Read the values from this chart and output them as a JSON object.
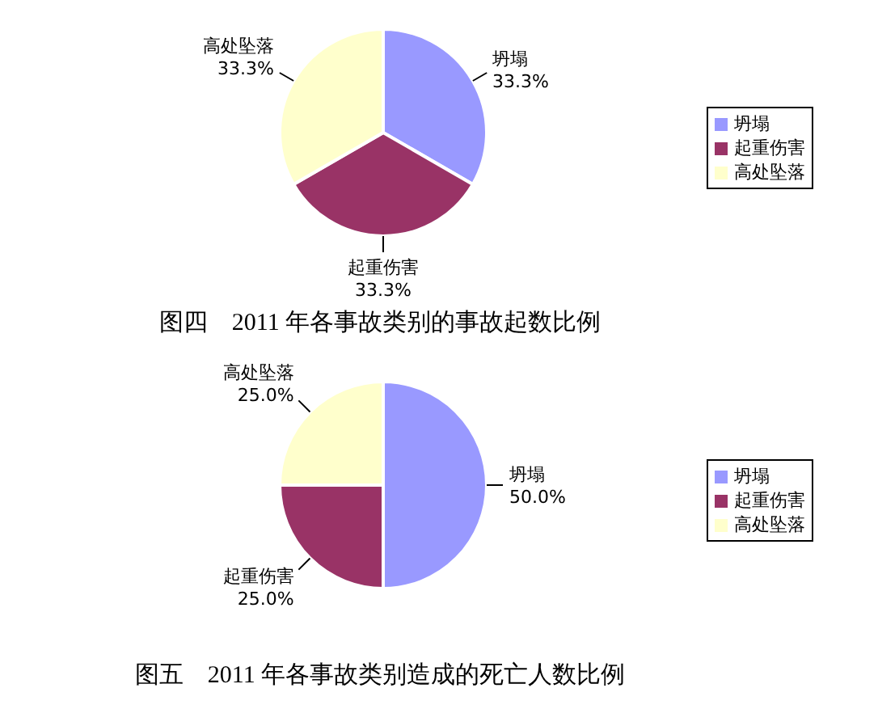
{
  "chart_data": [
    {
      "type": "pie",
      "title": "图四　2011 年各事故类别的事故起数比例",
      "categories": [
        "坍塌",
        "起重伤害",
        "高处坠落"
      ],
      "values": [
        33.3,
        33.3,
        33.3
      ],
      "colors": [
        "#9999ff",
        "#993366",
        "#ffffcc"
      ],
      "value_labels": [
        "33.3%",
        "33.3%",
        "33.3%"
      ],
      "legend": "right"
    },
    {
      "type": "pie",
      "title": "图五　2011 年各事故类别造成的死亡人数比例",
      "categories": [
        "坍塌",
        "起重伤害",
        "高处坠落"
      ],
      "values": [
        50,
        25,
        25
      ],
      "colors": [
        "#9999ff",
        "#993366",
        "#ffffcc"
      ],
      "value_labels": [
        "50.0%",
        "25.0%",
        "25.0%"
      ],
      "legend": "right"
    }
  ]
}
